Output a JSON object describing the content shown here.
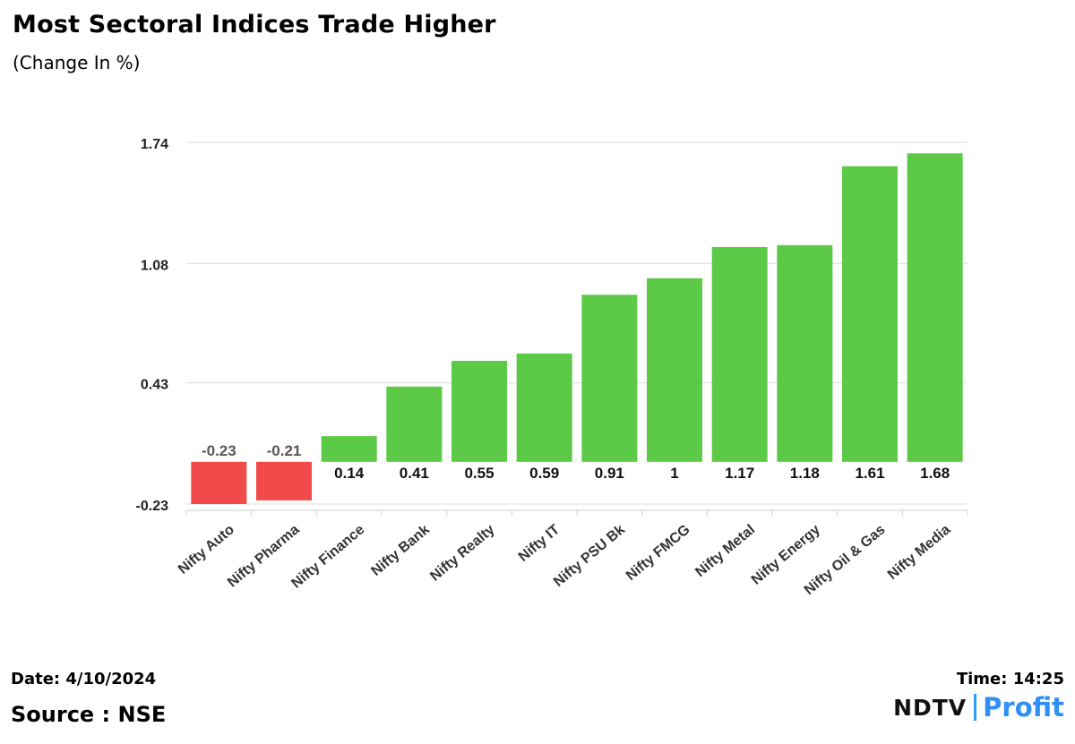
{
  "chart_data": {
    "type": "bar",
    "title": "Most Sectoral Indices Trade Higher",
    "subtitle": "(Change In %)",
    "categories": [
      "Nifty Auto",
      "Nifty Pharma",
      "Nifty Finance",
      "Nifty Bank",
      "Nifty Realty",
      "Nifty IT",
      "Nifty PSU Bk",
      "Nifty FMCG",
      "Nifty Metal",
      "Nifty Energy",
      "Nifty Oil & Gas",
      "Nifty Media"
    ],
    "values": [
      -0.23,
      -0.21,
      0.14,
      0.41,
      0.55,
      0.59,
      0.91,
      1,
      1.17,
      1.18,
      1.61,
      1.68
    ],
    "value_labels": [
      "-0.23",
      "-0.21",
      "0.14",
      "0.41",
      "0.55",
      "0.59",
      "0.91",
      "1",
      "1.17",
      "1.18",
      "1.61",
      "1.68"
    ],
    "y_ticks": [
      -0.23,
      0.43,
      1.08,
      1.74
    ],
    "y_tick_labels": [
      "-0.23",
      "0.43",
      "1.08",
      "1.74"
    ],
    "ylim": [
      -0.23,
      1.74
    ],
    "grid": true,
    "colors": {
      "positive": "#5cc947",
      "negative": "#f04a4a"
    }
  },
  "footer": {
    "date": "Date: 4/10/2024",
    "source": "Source : NSE",
    "time": "Time: 14:25"
  },
  "logo": {
    "part1": "NDTV",
    "part2": "Profit"
  }
}
